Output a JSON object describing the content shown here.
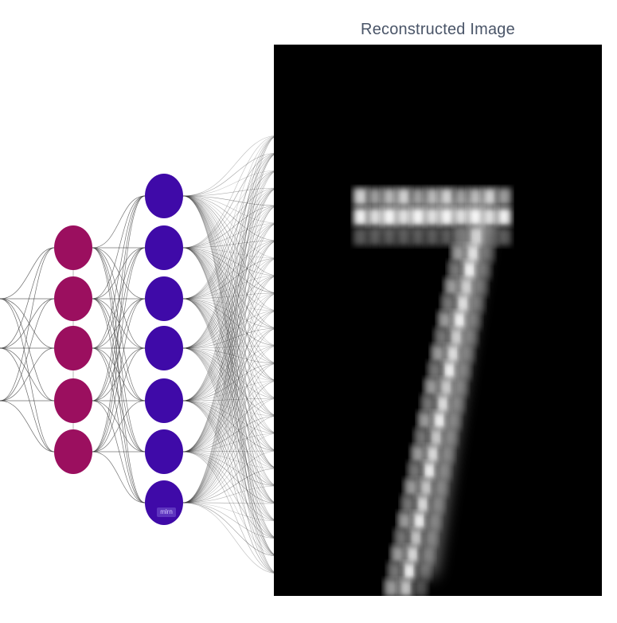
{
  "diagram": {
    "left_layer": {
      "color": "#9b0f5f",
      "node_count": 5
    },
    "right_layer": {
      "color": "#3f0aa8",
      "node_count": 7
    },
    "edge_color": "#3a3a3a",
    "badge_label": "mlrn"
  },
  "reconstruction": {
    "title": "Reconstructed Image",
    "digit": "7",
    "background": "#000000"
  }
}
